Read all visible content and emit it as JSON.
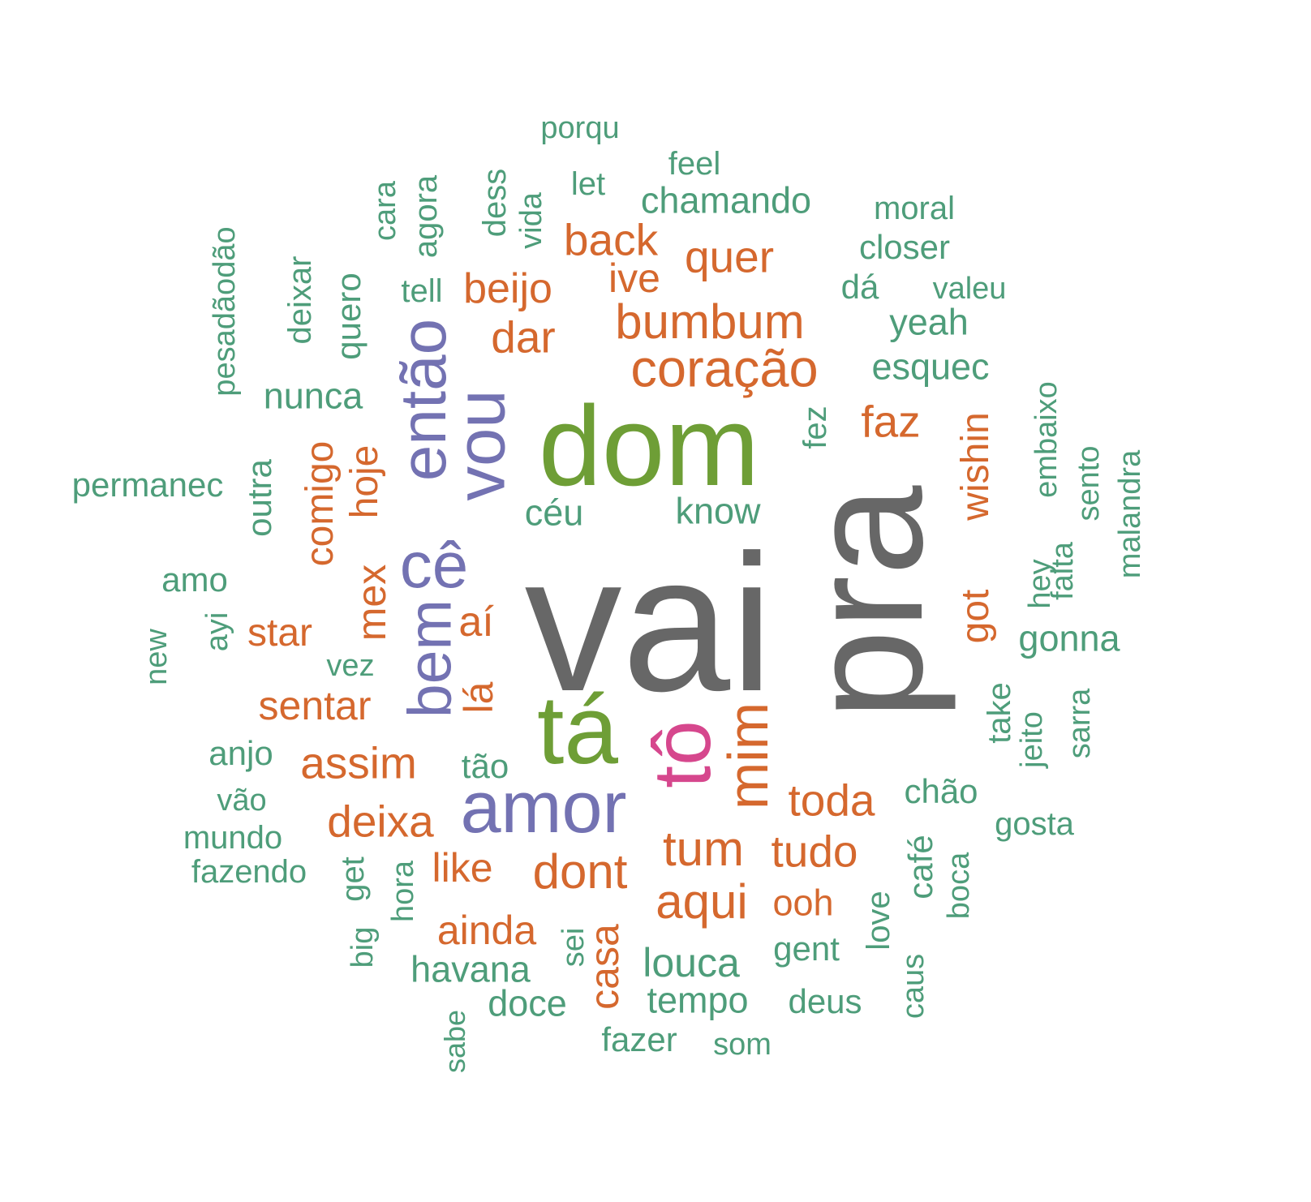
{
  "palette": {
    "green": "#4e9d7a",
    "orange": "#d5682e",
    "purple": "#7372b2",
    "olive": "#6e9e36",
    "gray": "#676767",
    "magenta": "#d6478d"
  },
  "words": [
    {
      "text": "vai",
      "color": "gray",
      "vertical": false
    },
    {
      "text": "pra",
      "color": "gray",
      "vertical": true
    },
    {
      "text": "dom",
      "color": "olive",
      "vertical": false
    },
    {
      "text": "tá",
      "color": "olive",
      "vertical": false
    },
    {
      "text": "tô",
      "color": "magenta",
      "vertical": true
    },
    {
      "text": "amor",
      "color": "purple",
      "vertical": false
    },
    {
      "text": "vou",
      "color": "purple",
      "vertical": true
    },
    {
      "text": "então",
      "color": "purple",
      "vertical": true
    },
    {
      "text": "cê",
      "color": "purple",
      "vertical": false
    },
    {
      "text": "bem",
      "color": "purple",
      "vertical": true
    },
    {
      "text": "coração",
      "color": "orange",
      "vertical": false
    },
    {
      "text": "bumbum",
      "color": "orange",
      "vertical": false
    },
    {
      "text": "quer",
      "color": "orange",
      "vertical": false
    },
    {
      "text": "back",
      "color": "orange",
      "vertical": false
    },
    {
      "text": "ive",
      "color": "orange",
      "vertical": false
    },
    {
      "text": "beijo",
      "color": "orange",
      "vertical": false
    },
    {
      "text": "dar",
      "color": "orange",
      "vertical": false
    },
    {
      "text": "faz",
      "color": "orange",
      "vertical": false
    },
    {
      "text": "wishin",
      "color": "orange",
      "vertical": true
    },
    {
      "text": "got",
      "color": "orange",
      "vertical": true
    },
    {
      "text": "comigo",
      "color": "orange",
      "vertical": true
    },
    {
      "text": "hoje",
      "color": "orange",
      "vertical": true
    },
    {
      "text": "mex",
      "color": "orange",
      "vertical": true
    },
    {
      "text": "star",
      "color": "orange",
      "vertical": false
    },
    {
      "text": "aí",
      "color": "orange",
      "vertical": false
    },
    {
      "text": "lá",
      "color": "orange",
      "vertical": true
    },
    {
      "text": "sentar",
      "color": "orange",
      "vertical": false
    },
    {
      "text": "assim",
      "color": "orange",
      "vertical": false
    },
    {
      "text": "mim",
      "color": "orange",
      "vertical": true
    },
    {
      "text": "toda",
      "color": "orange",
      "vertical": false
    },
    {
      "text": "deixa",
      "color": "orange",
      "vertical": false
    },
    {
      "text": "tum",
      "color": "orange",
      "vertical": false
    },
    {
      "text": "tudo",
      "color": "orange",
      "vertical": false
    },
    {
      "text": "like",
      "color": "orange",
      "vertical": false
    },
    {
      "text": "dont",
      "color": "orange",
      "vertical": false
    },
    {
      "text": "aqui",
      "color": "orange",
      "vertical": false
    },
    {
      "text": "ooh",
      "color": "orange",
      "vertical": false
    },
    {
      "text": "ainda",
      "color": "orange",
      "vertical": false
    },
    {
      "text": "casa",
      "color": "orange",
      "vertical": true
    },
    {
      "text": "porqu",
      "color": "green",
      "vertical": false
    },
    {
      "text": "feel",
      "color": "green",
      "vertical": false
    },
    {
      "text": "let",
      "color": "green",
      "vertical": false
    },
    {
      "text": "chamando",
      "color": "green",
      "vertical": false
    },
    {
      "text": "moral",
      "color": "green",
      "vertical": false
    },
    {
      "text": "closer",
      "color": "green",
      "vertical": false
    },
    {
      "text": "dá",
      "color": "green",
      "vertical": false
    },
    {
      "text": "valeu",
      "color": "green",
      "vertical": false
    },
    {
      "text": "yeah",
      "color": "green",
      "vertical": false
    },
    {
      "text": "esquec",
      "color": "green",
      "vertical": false
    },
    {
      "text": "dess",
      "color": "green",
      "vertical": true
    },
    {
      "text": "vida",
      "color": "green",
      "vertical": true
    },
    {
      "text": "agora",
      "color": "green",
      "vertical": true
    },
    {
      "text": "cara",
      "color": "green",
      "vertical": true
    },
    {
      "text": "tell",
      "color": "green",
      "vertical": false
    },
    {
      "text": "quero",
      "color": "green",
      "vertical": true
    },
    {
      "text": "deixar",
      "color": "green",
      "vertical": true
    },
    {
      "text": "pesadãodão",
      "color": "green",
      "vertical": true
    },
    {
      "text": "nunca",
      "color": "green",
      "vertical": false
    },
    {
      "text": "fez",
      "color": "green",
      "vertical": true
    },
    {
      "text": "embaixo",
      "color": "green",
      "vertical": true
    },
    {
      "text": "sento",
      "color": "green",
      "vertical": true
    },
    {
      "text": "malandra",
      "color": "green",
      "vertical": true
    },
    {
      "text": "falta",
      "color": "green",
      "vertical": true
    },
    {
      "text": "hey",
      "color": "green",
      "vertical": true
    },
    {
      "text": "gonna",
      "color": "green",
      "vertical": false
    },
    {
      "text": "permanec",
      "color": "green",
      "vertical": false
    },
    {
      "text": "outra",
      "color": "green",
      "vertical": true
    },
    {
      "text": "céu",
      "color": "green",
      "vertical": false
    },
    {
      "text": "know",
      "color": "green",
      "vertical": false
    },
    {
      "text": "amo",
      "color": "green",
      "vertical": false
    },
    {
      "text": "ayi",
      "color": "green",
      "vertical": true
    },
    {
      "text": "new",
      "color": "green",
      "vertical": true
    },
    {
      "text": "vez",
      "color": "green",
      "vertical": false
    },
    {
      "text": "take",
      "color": "green",
      "vertical": true
    },
    {
      "text": "jeito",
      "color": "green",
      "vertical": true
    },
    {
      "text": "sarra",
      "color": "green",
      "vertical": true
    },
    {
      "text": "anjo",
      "color": "green",
      "vertical": false
    },
    {
      "text": "tão",
      "color": "green",
      "vertical": false
    },
    {
      "text": "vão",
      "color": "green",
      "vertical": false
    },
    {
      "text": "chão",
      "color": "green",
      "vertical": false
    },
    {
      "text": "gosta",
      "color": "green",
      "vertical": false
    },
    {
      "text": "mundo",
      "color": "green",
      "vertical": false
    },
    {
      "text": "fazendo",
      "color": "green",
      "vertical": false
    },
    {
      "text": "get",
      "color": "green",
      "vertical": true
    },
    {
      "text": "hora",
      "color": "green",
      "vertical": true
    },
    {
      "text": "café",
      "color": "green",
      "vertical": true
    },
    {
      "text": "boca",
      "color": "green",
      "vertical": true
    },
    {
      "text": "love",
      "color": "green",
      "vertical": true
    },
    {
      "text": "big",
      "color": "green",
      "vertical": true
    },
    {
      "text": "sei",
      "color": "green",
      "vertical": true
    },
    {
      "text": "havana",
      "color": "green",
      "vertical": false
    },
    {
      "text": "louca",
      "color": "green",
      "vertical": false
    },
    {
      "text": "gent",
      "color": "green",
      "vertical": false
    },
    {
      "text": "caus",
      "color": "green",
      "vertical": true
    },
    {
      "text": "doce",
      "color": "green",
      "vertical": false
    },
    {
      "text": "tempo",
      "color": "green",
      "vertical": false
    },
    {
      "text": "deus",
      "color": "green",
      "vertical": false
    },
    {
      "text": "sabe",
      "color": "green",
      "vertical": true
    },
    {
      "text": "fazer",
      "color": "green",
      "vertical": false
    },
    {
      "text": "som",
      "color": "green",
      "vertical": false
    }
  ]
}
